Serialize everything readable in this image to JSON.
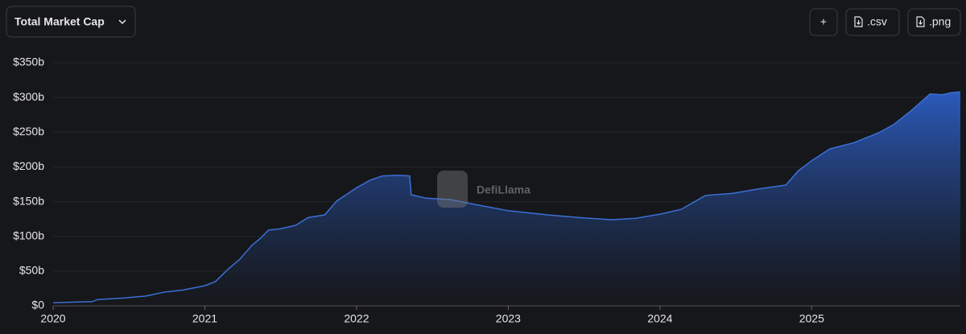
{
  "header": {
    "dropdown": "Total Market Cap",
    "buttons": [
      "+",
      ".csv",
      ".png"
    ]
  },
  "watermark": "DefiLlama",
  "chart_data": {
    "type": "area",
    "x": [
      2020.0,
      2020.26,
      2020.29,
      2020.45,
      2020.61,
      2020.74,
      2020.86,
      2021.0,
      2021.07,
      2021.15,
      2021.23,
      2021.31,
      2021.37,
      2021.42,
      2021.5,
      2021.6,
      2021.68,
      2021.79,
      2021.87,
      2022.0,
      2022.09,
      2022.17,
      2022.27,
      2022.35,
      2022.36,
      2022.46,
      2022.62,
      2022.78,
      2023.0,
      2023.26,
      2023.47,
      2023.68,
      2023.84,
      2024.0,
      2024.14,
      2024.3,
      2024.48,
      2024.64,
      2024.83,
      2024.91,
      2025.0,
      2025.12,
      2025.28,
      2025.44,
      2025.54,
      2025.65,
      2025.78,
      2025.86,
      2025.92,
      2025.98
    ],
    "series": [
      {
        "name": "Total Market Cap",
        "color": "#3b6fd6",
        "values": [
          4.5,
          6,
          9,
          11,
          14,
          20,
          23,
          29,
          35,
          52,
          67,
          87,
          98,
          109,
          111,
          116,
          127,
          131,
          151,
          170,
          181,
          187,
          188,
          187,
          160,
          155,
          153,
          146,
          137,
          131,
          127,
          124,
          126,
          132,
          139,
          159,
          162,
          168,
          174,
          194,
          209,
          226,
          235,
          249,
          261,
          280,
          305,
          304,
          307,
          308
        ]
      }
    ],
    "xlim": [
      2020,
      2025.98
    ],
    "xticks": [
      2020,
      2021,
      2022,
      2023,
      2024,
      2025
    ],
    "ylim": [
      0,
      350
    ],
    "yticks": [
      {
        "value": 0,
        "label": "$0"
      },
      {
        "value": 50,
        "label": "$50b"
      },
      {
        "value": 100,
        "label": "$100b"
      },
      {
        "value": 150,
        "label": "$150b"
      },
      {
        "value": 200,
        "label": "$200b"
      },
      {
        "value": 250,
        "label": "$250b"
      },
      {
        "value": 300,
        "label": "$300b"
      },
      {
        "value": 350,
        "label": "$350b"
      }
    ],
    "grid": true
  }
}
